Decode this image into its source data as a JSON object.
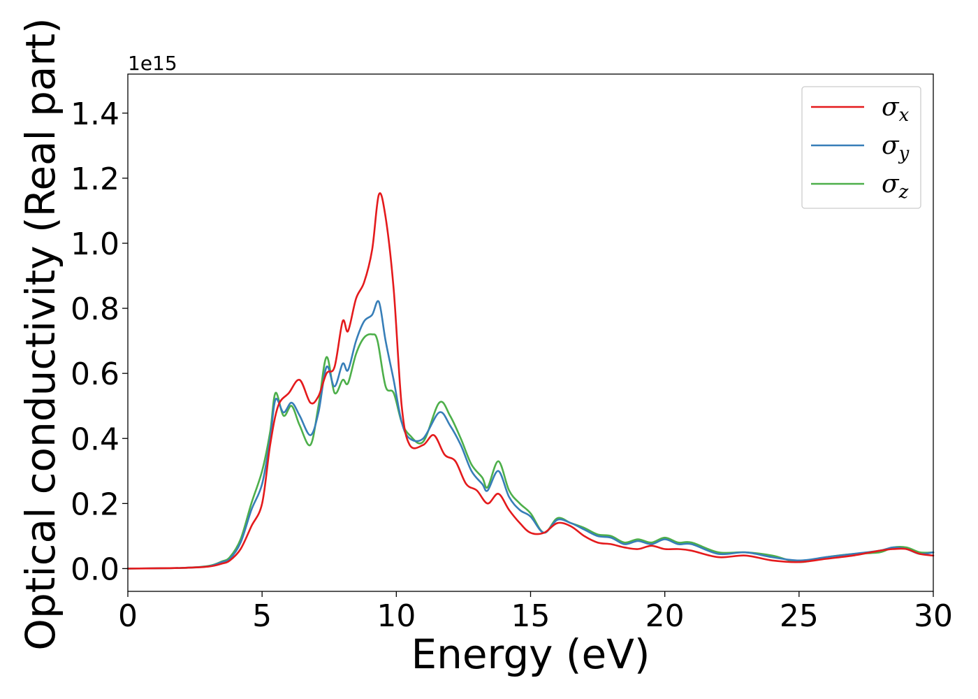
{
  "chart_data": {
    "type": "line",
    "xlabel": "Energy (eV)",
    "ylabel": "Optical conductivity (Real part)",
    "y_offset_label": "1e15",
    "xlim": [
      0,
      30
    ],
    "ylim": [
      -0.07,
      1.52
    ],
    "x_ticks": [
      0,
      5,
      10,
      15,
      20,
      25,
      30
    ],
    "x_tick_labels": [
      "0",
      "5",
      "10",
      "15",
      "20",
      "25",
      "30"
    ],
    "y_ticks": [
      0.0,
      0.2,
      0.4,
      0.6,
      0.8,
      1.0,
      1.2,
      1.4
    ],
    "y_tick_labels": [
      "0.0",
      "0.2",
      "0.4",
      "0.6",
      "0.8",
      "1.0",
      "1.2",
      "1.4"
    ],
    "grid": false,
    "legend_position": "top-right",
    "colors": {
      "sigma_x": "#e41a1c",
      "sigma_y": "#377eb8",
      "sigma_z": "#4daf4a"
    },
    "series": [
      {
        "name": "σx",
        "symbol": "σ",
        "subscript": "x",
        "color": "#e41a1c",
        "x": [
          0,
          2,
          3,
          3.5,
          3.8,
          4.2,
          4.6,
          5.0,
          5.3,
          5.6,
          6.0,
          6.4,
          6.8,
          7.1,
          7.4,
          7.7,
          8.0,
          8.2,
          8.5,
          8.8,
          9.1,
          9.35,
          9.6,
          9.9,
          10.2,
          10.5,
          11.0,
          11.4,
          11.8,
          12.2,
          12.6,
          13.0,
          13.4,
          13.8,
          14.2,
          14.6,
          15.0,
          15.5,
          16.0,
          16.5,
          17.0,
          17.5,
          18.0,
          18.5,
          19.0,
          19.5,
          20.0,
          20.5,
          21.0,
          22.0,
          23.0,
          24.0,
          25.0,
          26.0,
          27.0,
          28.0,
          28.5,
          29.0,
          29.5,
          30.0
        ],
        "y": [
          0.0,
          0.002,
          0.006,
          0.015,
          0.025,
          0.06,
          0.13,
          0.2,
          0.38,
          0.5,
          0.54,
          0.58,
          0.51,
          0.53,
          0.6,
          0.62,
          0.76,
          0.73,
          0.83,
          0.88,
          0.98,
          1.15,
          1.08,
          0.86,
          0.5,
          0.38,
          0.38,
          0.41,
          0.35,
          0.33,
          0.26,
          0.24,
          0.2,
          0.23,
          0.18,
          0.14,
          0.11,
          0.11,
          0.14,
          0.13,
          0.1,
          0.08,
          0.075,
          0.065,
          0.06,
          0.07,
          0.06,
          0.06,
          0.055,
          0.035,
          0.04,
          0.025,
          0.02,
          0.03,
          0.04,
          0.055,
          0.06,
          0.06,
          0.045,
          0.04
        ]
      },
      {
        "name": "σy",
        "symbol": "σ",
        "subscript": "y",
        "color": "#377eb8",
        "x": [
          0,
          2,
          3,
          3.5,
          3.8,
          4.2,
          4.6,
          5.0,
          5.3,
          5.5,
          5.8,
          6.1,
          6.4,
          6.8,
          7.1,
          7.4,
          7.7,
          8.0,
          8.2,
          8.5,
          8.8,
          9.1,
          9.35,
          9.6,
          9.9,
          10.2,
          10.5,
          11.0,
          11.6,
          12.0,
          12.4,
          12.8,
          13.2,
          13.4,
          13.8,
          14.2,
          14.6,
          15.0,
          15.5,
          16.0,
          16.5,
          17.0,
          17.5,
          18.0,
          18.5,
          19.0,
          19.5,
          20.0,
          20.5,
          21.0,
          22.0,
          23.0,
          24.0,
          25.0,
          26.0,
          27.0,
          28.0,
          28.5,
          29.0,
          29.5,
          30.0
        ],
        "y": [
          0.0,
          0.002,
          0.007,
          0.02,
          0.03,
          0.08,
          0.18,
          0.26,
          0.4,
          0.52,
          0.48,
          0.51,
          0.47,
          0.41,
          0.48,
          0.62,
          0.56,
          0.63,
          0.61,
          0.7,
          0.76,
          0.78,
          0.82,
          0.7,
          0.58,
          0.45,
          0.4,
          0.4,
          0.48,
          0.44,
          0.38,
          0.3,
          0.26,
          0.24,
          0.3,
          0.22,
          0.18,
          0.16,
          0.11,
          0.15,
          0.14,
          0.12,
          0.1,
          0.095,
          0.075,
          0.085,
          0.075,
          0.09,
          0.075,
          0.075,
          0.045,
          0.05,
          0.035,
          0.025,
          0.035,
          0.045,
          0.055,
          0.065,
          0.06,
          0.045,
          0.05
        ]
      },
      {
        "name": "σz",
        "symbol": "σ",
        "subscript": "z",
        "color": "#4daf4a",
        "x": [
          0,
          2,
          3,
          3.5,
          3.8,
          4.2,
          4.6,
          5.0,
          5.3,
          5.5,
          5.8,
          6.1,
          6.4,
          6.8,
          7.1,
          7.4,
          7.7,
          8.0,
          8.2,
          8.5,
          8.8,
          9.1,
          9.3,
          9.6,
          9.9,
          10.2,
          10.5,
          11.0,
          11.6,
          12.0,
          12.4,
          12.8,
          13.2,
          13.4,
          13.8,
          14.2,
          14.6,
          15.0,
          15.5,
          16.0,
          16.5,
          17.0,
          17.5,
          18.0,
          18.5,
          19.0,
          19.5,
          20.0,
          20.5,
          21.0,
          22.0,
          23.0,
          24.0,
          25.0,
          26.0,
          27.0,
          28.0,
          28.5,
          29.0,
          29.5,
          30.0
        ],
        "y": [
          0.0,
          0.002,
          0.008,
          0.022,
          0.035,
          0.09,
          0.2,
          0.3,
          0.42,
          0.54,
          0.47,
          0.5,
          0.44,
          0.38,
          0.5,
          0.65,
          0.54,
          0.58,
          0.57,
          0.66,
          0.71,
          0.72,
          0.7,
          0.56,
          0.54,
          0.45,
          0.41,
          0.39,
          0.51,
          0.47,
          0.4,
          0.32,
          0.28,
          0.25,
          0.33,
          0.24,
          0.2,
          0.17,
          0.11,
          0.155,
          0.14,
          0.125,
          0.105,
          0.1,
          0.08,
          0.09,
          0.08,
          0.095,
          0.08,
          0.08,
          0.05,
          0.05,
          0.04,
          0.02,
          0.035,
          0.045,
          0.05,
          0.065,
          0.065,
          0.05,
          0.05
        ]
      }
    ]
  }
}
